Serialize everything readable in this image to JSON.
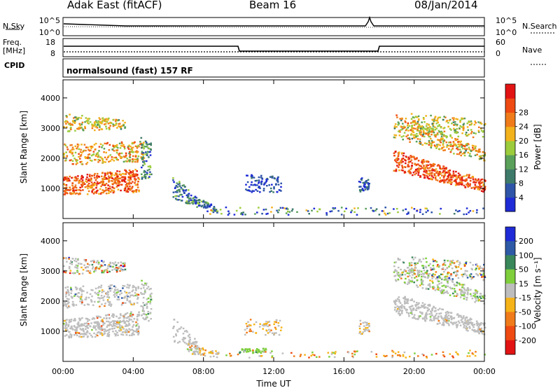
{
  "header": {
    "site": "Adak East (fitACF)",
    "beam": "Beam 16",
    "date": "08/Jan/2014"
  },
  "nsky_panel": {
    "left_label": "N.Sky",
    "right_label": "N.Search",
    "left_ticks": [
      "10^5",
      "10^0"
    ],
    "right_ticks": [
      "10^5",
      "10^0"
    ]
  },
  "freq_panel": {
    "left_label_top": "Freq.",
    "left_label_bottom": "[MHz]",
    "right_label": "Nave",
    "left_ticks": [
      "18",
      "8"
    ],
    "right_ticks": [
      "60",
      "0"
    ]
  },
  "cpid": {
    "label": "CPID",
    "program": "normalsound (fast) 157 RF"
  },
  "chart_data": [
    {
      "type": "heatmap",
      "ylabel": "Slant Range [km]",
      "yticks": [
        "1000",
        "2000",
        "3000",
        "4000"
      ],
      "xticks": [
        "00:00",
        "04:00",
        "08:00",
        "12:00",
        "16:00",
        "20:00",
        "00:00"
      ],
      "colorbar": {
        "label": "Power [dB]",
        "ticks": [
          "4",
          "8",
          "12",
          "16",
          "20",
          "24",
          "28"
        ],
        "colors": [
          "#1f2bd6",
          "#2f55a8",
          "#3e7a6a",
          "#5aa05a",
          "#9ccc3c",
          "#f2b21c",
          "#f07b1a",
          "#ee4a12",
          "#e21313"
        ]
      }
    },
    {
      "type": "heatmap",
      "ylabel": "Slant Range [km]",
      "yticks": [
        "1000",
        "2000",
        "3000",
        "4000"
      ],
      "xticks": [
        "00:00",
        "04:00",
        "08:00",
        "12:00",
        "16:00",
        "20:00",
        "00:00"
      ],
      "xlabel": "Time UT",
      "colorbar": {
        "label": "Velocity [m s⁻¹]",
        "ticks": [
          "200",
          "100",
          "50",
          "15",
          "-15",
          "-50",
          "-100",
          "-200"
        ],
        "colors": [
          "#1f2bd6",
          "#2e5aa6",
          "#39875a",
          "#7fcf3c",
          "#bdbdbd",
          "#f6b318",
          "#f07b1a",
          "#ee4a12",
          "#e21313"
        ]
      }
    }
  ]
}
